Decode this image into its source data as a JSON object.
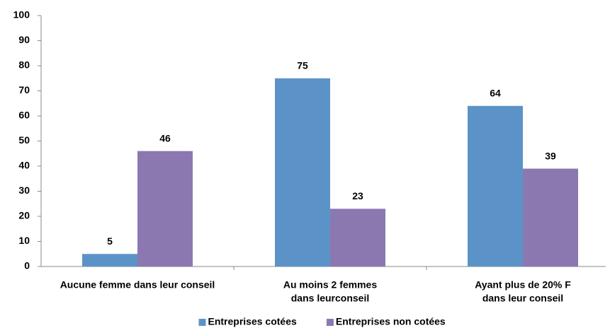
{
  "chart_data": {
    "type": "bar",
    "categories": [
      [
        "Aucune femme dans leur conseil"
      ],
      [
        "Au moins 2 femmes",
        "dans leurconseil"
      ],
      [
        "Ayant plus de 20% F",
        "dans leur conseil"
      ]
    ],
    "series": [
      {
        "name": "Entreprises cotées",
        "color": "#5b93c8",
        "values": [
          5,
          75,
          64
        ]
      },
      {
        "name": "Entreprises non cotées",
        "color": "#8b78b0",
        "values": [
          46,
          23,
          39
        ]
      }
    ],
    "ylim": [
      0,
      100
    ],
    "yticks": [
      0,
      10,
      20,
      30,
      40,
      50,
      60,
      70,
      80,
      90,
      100
    ],
    "legend": "bottom"
  }
}
